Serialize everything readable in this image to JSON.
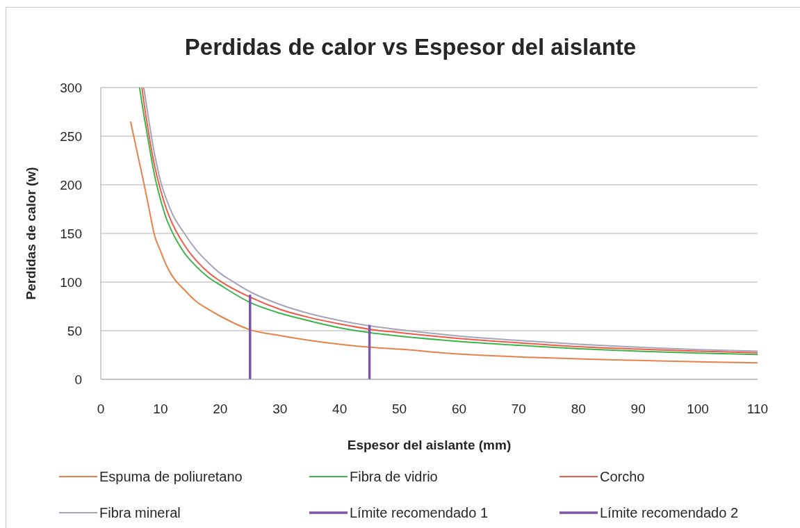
{
  "chart_data": {
    "type": "line",
    "title": "Perdidas de calor vs Espesor del aislante",
    "xlabel": "Espesor del aislante (mm)",
    "ylabel": "Perdidas de calor (w)",
    "xlim": [
      0,
      110
    ],
    "xticks": [
      0,
      10,
      20,
      30,
      40,
      50,
      60,
      70,
      80,
      90,
      100,
      110
    ],
    "ylim": [
      0,
      300
    ],
    "yticks": [
      0,
      50,
      100,
      150,
      200,
      250,
      300
    ],
    "grid": "y",
    "legend": "bottom",
    "series": [
      {
        "name": "Espuma de poliuretano",
        "color": "#e8804a",
        "x": [
          5,
          6,
          7,
          8,
          9,
          10,
          11,
          12,
          14,
          16,
          18,
          20,
          25,
          30,
          35,
          40,
          45,
          50,
          60,
          70,
          80,
          90,
          100,
          110
        ],
        "values": [
          265,
          236,
          208,
          178,
          148,
          132,
          117,
          106,
          92,
          80,
          72,
          65,
          51,
          45,
          40,
          36,
          33,
          31,
          26,
          23,
          21,
          19.5,
          18,
          17
        ]
      },
      {
        "name": "Fibra de vidrio",
        "color": "#3cb44b",
        "x": [
          6.5,
          7,
          8,
          9,
          10,
          11,
          12,
          14,
          16,
          18,
          20,
          25,
          30,
          35,
          40,
          45,
          50,
          60,
          70,
          80,
          90,
          100,
          110
        ],
        "values": [
          300,
          280,
          244,
          210,
          185,
          165,
          151,
          130,
          116,
          105,
          97,
          79,
          68,
          60,
          53,
          48,
          44.5,
          39,
          35,
          31.5,
          29,
          27,
          25.5
        ]
      },
      {
        "name": "Corcho",
        "color": "#ee5a48",
        "x": [
          6.9,
          7,
          8,
          9,
          10,
          11,
          12,
          14,
          16,
          18,
          20,
          25,
          30,
          35,
          40,
          45,
          50,
          60,
          70,
          80,
          90,
          100,
          110
        ],
        "values": [
          300,
          295,
          254,
          220,
          195,
          175,
          160,
          138,
          122,
          110,
          101,
          84.5,
          72,
          63.5,
          57,
          51.5,
          48,
          42,
          37.5,
          33.5,
          31,
          29,
          27.3
        ]
      },
      {
        "name": "Fibra mineral",
        "color": "#a5a5b8",
        "x": [
          7.2,
          8,
          9,
          10,
          11,
          12,
          14,
          16,
          18,
          20,
          22,
          25,
          30,
          35,
          40,
          45,
          50,
          60,
          70,
          80,
          90,
          100,
          110
        ],
        "values": [
          300,
          268,
          232,
          204,
          185,
          170,
          150,
          133,
          120,
          109,
          101,
          90,
          77,
          67.5,
          60.5,
          55,
          51,
          44.5,
          40,
          36,
          33,
          30.5,
          29
        ]
      },
      {
        "name": "Límite recomendado 1",
        "color": "#7f55a5",
        "x": [
          25,
          25
        ],
        "values": [
          0,
          87
        ]
      },
      {
        "name": "Límite recomendado 2",
        "color": "#7f55a5",
        "x": [
          45,
          45
        ],
        "values": [
          0,
          56
        ]
      }
    ]
  }
}
